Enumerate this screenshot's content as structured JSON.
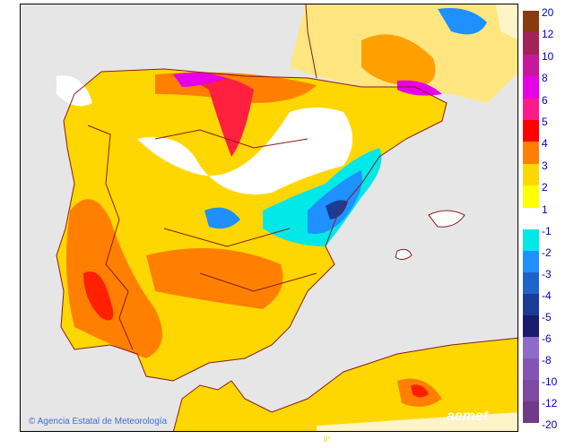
{
  "map": {
    "sea_color": "#e6e6e6",
    "border_color": "#8b1a1a",
    "longitude_label": "0°"
  },
  "credit": "© Agencia Estatal de Meteorología",
  "logo": "aemet",
  "legend": {
    "positive": [
      {
        "label": "20",
        "color": "#8b3a10"
      },
      {
        "label": "12",
        "color": "#a3225a"
      },
      {
        "label": "10",
        "color": "#c8189a"
      },
      {
        "label": "8",
        "color": "#e600e6"
      },
      {
        "label": "6",
        "color": "#ff1a8c"
      },
      {
        "label": "5",
        "color": "#ff0000"
      },
      {
        "label": "4",
        "color": "#ff8000"
      },
      {
        "label": "3",
        "color": "#ffd700"
      },
      {
        "label": "2",
        "color": "#ffff00"
      }
    ],
    "positive_end": "1",
    "negative": [
      {
        "label": "-1",
        "color": "#00e8e8"
      },
      {
        "label": "-2",
        "color": "#1e90ff"
      },
      {
        "label": "-3",
        "color": "#1e64c8"
      },
      {
        "label": "-4",
        "color": "#1a3c96"
      },
      {
        "label": "-5",
        "color": "#1a1a6e"
      },
      {
        "label": "-6",
        "color": "#8c6cc8"
      },
      {
        "label": "-8",
        "color": "#8454b4"
      },
      {
        "label": "-10",
        "color": "#7c4aa0"
      },
      {
        "label": "-12",
        "color": "#703a88"
      }
    ],
    "negative_end": "-20"
  }
}
